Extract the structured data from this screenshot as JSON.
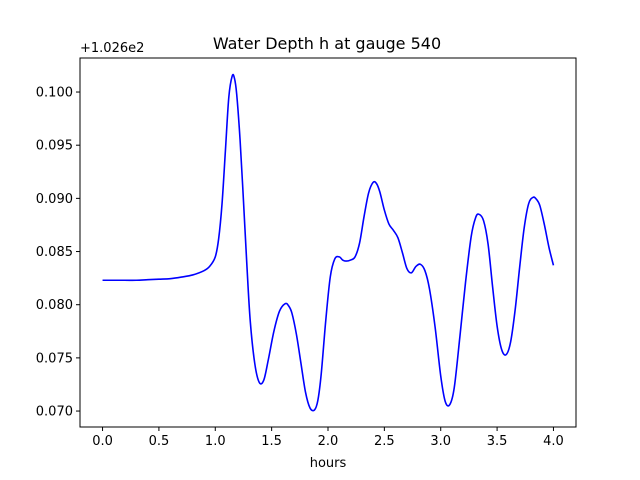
{
  "chart_data": {
    "type": "line",
    "title": "Water Depth h at gauge 540",
    "xlabel": "hours",
    "ylabel": "",
    "y_offset_label": "+1.026e2",
    "xlim": [
      -0.2,
      4.2
    ],
    "ylim": [
      0.0685,
      0.1032
    ],
    "x_ticks": [
      0.0,
      0.5,
      1.0,
      1.5,
      2.0,
      2.5,
      3.0,
      3.5,
      4.0
    ],
    "x_tick_labels": [
      "0.0",
      "0.5",
      "1.0",
      "1.5",
      "2.0",
      "2.5",
      "3.0",
      "3.5",
      "4.0"
    ],
    "y_ticks": [
      0.07,
      0.075,
      0.08,
      0.085,
      0.09,
      0.095,
      0.1
    ],
    "y_tick_labels": [
      "0.070",
      "0.075",
      "0.080",
      "0.085",
      "0.090",
      "0.095",
      "0.100"
    ],
    "grid": false,
    "series": [
      {
        "color": "#0000ff",
        "x": [
          0.0,
          0.1,
          0.2,
          0.3,
          0.4,
          0.5,
          0.6,
          0.7,
          0.8,
          0.9,
          0.95,
          1.0,
          1.03,
          1.06,
          1.09,
          1.12,
          1.15,
          1.17,
          1.19,
          1.22,
          1.25,
          1.28,
          1.31,
          1.35,
          1.39,
          1.43,
          1.47,
          1.52,
          1.57,
          1.62,
          1.65,
          1.68,
          1.72,
          1.76,
          1.8,
          1.84,
          1.88,
          1.91,
          1.94,
          1.98,
          2.02,
          2.06,
          2.1,
          2.13,
          2.16,
          2.2,
          2.24,
          2.28,
          2.32,
          2.36,
          2.4,
          2.43,
          2.46,
          2.5,
          2.54,
          2.58,
          2.62,
          2.66,
          2.7,
          2.74,
          2.78,
          2.82,
          2.86,
          2.9,
          2.95,
          3.0,
          3.04,
          3.08,
          3.12,
          3.17,
          3.22,
          3.27,
          3.31,
          3.34,
          3.38,
          3.42,
          3.46,
          3.5,
          3.54,
          3.58,
          3.62,
          3.66,
          3.7,
          3.74,
          3.78,
          3.82,
          3.85,
          3.88,
          3.92,
          3.96,
          4.0
        ],
        "y": [
          0.0823,
          0.0823,
          0.0823,
          0.0823,
          0.08235,
          0.0824,
          0.08245,
          0.0826,
          0.0828,
          0.0832,
          0.0836,
          0.0845,
          0.0862,
          0.0895,
          0.0945,
          0.0995,
          0.1015,
          0.1013,
          0.0998,
          0.0955,
          0.0898,
          0.0838,
          0.0785,
          0.0745,
          0.0727,
          0.0729,
          0.0748,
          0.0775,
          0.0794,
          0.0801,
          0.0799,
          0.0792,
          0.0772,
          0.0745,
          0.0718,
          0.0703,
          0.0701,
          0.071,
          0.0735,
          0.0785,
          0.0826,
          0.0843,
          0.0845,
          0.0842,
          0.0841,
          0.0842,
          0.0845,
          0.0858,
          0.0883,
          0.0905,
          0.0915,
          0.0914,
          0.0906,
          0.0889,
          0.0876,
          0.087,
          0.0863,
          0.0849,
          0.0834,
          0.083,
          0.0836,
          0.0838,
          0.0832,
          0.0815,
          0.0779,
          0.0733,
          0.0709,
          0.0706,
          0.0722,
          0.077,
          0.0821,
          0.0864,
          0.0882,
          0.0885,
          0.0879,
          0.0857,
          0.0817,
          0.078,
          0.0758,
          0.0753,
          0.0765,
          0.0795,
          0.0835,
          0.0872,
          0.0895,
          0.0901,
          0.0899,
          0.0893,
          0.0875,
          0.0854,
          0.0837
        ]
      }
    ]
  }
}
